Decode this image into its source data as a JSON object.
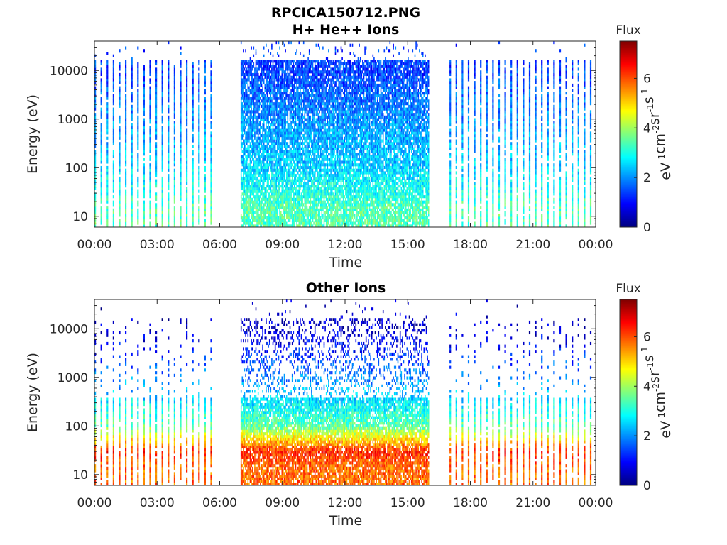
{
  "figure_title": "RPCICA150712.PNG",
  "colors": {
    "colormap": [
      "#00007f",
      "#0000ff",
      "#007fff",
      "#00ffff",
      "#7fff7f",
      "#ffff00",
      "#ff7f00",
      "#ff0000",
      "#7f0000"
    ],
    "axis": "#262626"
  },
  "chart_data": [
    {
      "type": "heatmap",
      "title": "H+ He++ Ions",
      "xlabel": "Time",
      "ylabel": "Energy (eV)",
      "y_scale": "log",
      "ylim": [
        6,
        40000
      ],
      "xlim": [
        "00:00",
        "24:00"
      ],
      "x_tick_labels": [
        "00:00",
        "03:00",
        "06:00",
        "09:00",
        "12:00",
        "15:00",
        "18:00",
        "21:00",
        "00:00"
      ],
      "y_tick_labels": [
        "10",
        "100",
        "1000",
        "10000"
      ],
      "colorbar": {
        "title": "Flux",
        "label": "eV^-1 cm^-2 sr^-1 s^-1",
        "range": [
          0,
          7.5
        ],
        "tick_labels": [
          "0",
          "2",
          "4",
          "6"
        ]
      },
      "data_segments": [
        {
          "start": "00:00",
          "end": "05:50",
          "pattern": "periodic bursts"
        },
        {
          "start": "07:00",
          "end": "16:00",
          "pattern": "continuous"
        },
        {
          "start": "17:00",
          "end": "24:00",
          "pattern": "periodic bursts"
        }
      ],
      "flux_vs_energy": [
        {
          "energy": 15,
          "flux": 3.4
        },
        {
          "energy": 30,
          "flux": 3.0
        },
        {
          "energy": 100,
          "flux": 2.5
        },
        {
          "energy": 1000,
          "flux": 2.0
        },
        {
          "energy": 10000,
          "flux": 1.4
        }
      ]
    },
    {
      "type": "heatmap",
      "title": "Other Ions",
      "xlabel": "Time",
      "ylabel": "Energy (eV)",
      "y_scale": "log",
      "ylim": [
        6,
        40000
      ],
      "xlim": [
        "00:00",
        "24:00"
      ],
      "x_tick_labels": [
        "00:00",
        "03:00",
        "06:00",
        "09:00",
        "12:00",
        "15:00",
        "18:00",
        "21:00",
        "00:00"
      ],
      "y_tick_labels": [
        "10",
        "100",
        "1000",
        "10000"
      ],
      "colorbar": {
        "title": "Flux",
        "label": "eV^-1 cm^-2 sr^-1 s^-1",
        "range": [
          0,
          7.5
        ],
        "tick_labels": [
          "0",
          "2",
          "4",
          "6"
        ]
      },
      "data_segments": [
        {
          "start": "00:00",
          "end": "05:50",
          "pattern": "periodic bursts"
        },
        {
          "start": "07:00",
          "end": "16:00",
          "pattern": "continuous"
        },
        {
          "start": "17:00",
          "end": "24:00",
          "pattern": "periodic bursts"
        }
      ],
      "flux_vs_energy": [
        {
          "energy": 15,
          "flux": 5.8
        },
        {
          "energy": 30,
          "flux": 6.3
        },
        {
          "energy": 100,
          "flux": 3.5
        },
        {
          "energy": 500,
          "flux": 2.3
        },
        {
          "energy": 10000,
          "flux": 0.5
        }
      ]
    }
  ]
}
